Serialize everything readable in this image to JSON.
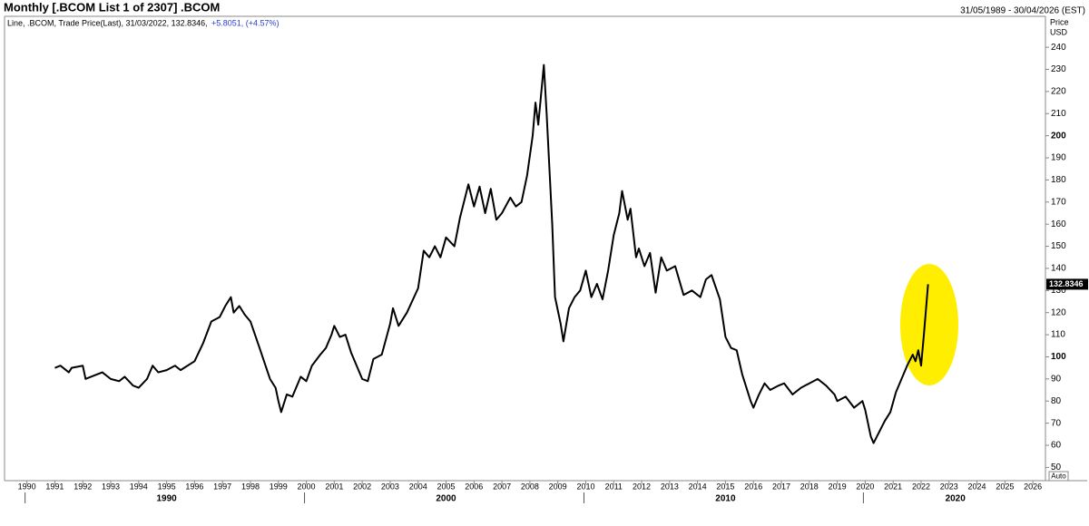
{
  "header": {
    "title": "Monthly [.BCOM List 1 of 2307] .BCOM",
    "range": "31/05/1989 - 30/04/2026 (EST)",
    "legend": "Line, .BCOM, Trade Price(Last), 31/03/2022, 132.8346,",
    "change": "+5.8051, (+4.57%)",
    "auto_button": "Auto"
  },
  "chart_data": {
    "type": "line",
    "y_axis_label": "Price",
    "y_axis_unit": "USD",
    "xlim": [
      1989.2,
      2026.45
    ],
    "ylim": [
      44,
      254
    ],
    "xticks": [
      1990,
      1991,
      1992,
      1993,
      1994,
      1995,
      1996,
      1997,
      1998,
      1999,
      2000,
      2001,
      2002,
      2003,
      2004,
      2005,
      2006,
      2007,
      2008,
      2009,
      2010,
      2011,
      2012,
      2013,
      2014,
      2015,
      2016,
      2017,
      2018,
      2019,
      2020,
      2021,
      2022,
      2023,
      2024,
      2025,
      2026
    ],
    "decade_ticks": [
      1990,
      2000,
      2010,
      2020
    ],
    "yticks": [
      50,
      60,
      70,
      80,
      90,
      100,
      110,
      120,
      130,
      140,
      150,
      160,
      170,
      180,
      190,
      200,
      210,
      220,
      230,
      240
    ],
    "x": [
      1991.0,
      1991.2,
      1991.5,
      1991.6,
      1992.0,
      1992.1,
      1992.5,
      1992.7,
      1993.0,
      1993.3,
      1993.5,
      1993.8,
      1994.0,
      1994.3,
      1994.5,
      1994.7,
      1995.0,
      1995.3,
      1995.5,
      1996.0,
      1996.3,
      1996.6,
      1996.9,
      1997.1,
      1997.3,
      1997.4,
      1997.6,
      1997.8,
      1998.0,
      1998.3,
      1998.7,
      1998.9,
      1999.0,
      1999.1,
      1999.3,
      1999.5,
      1999.8,
      2000.0,
      2000.2,
      2000.5,
      2000.7,
      2000.9,
      2001.0,
      2001.2,
      2001.4,
      2001.6,
      2001.8,
      2002.0,
      2002.2,
      2002.4,
      2002.7,
      2003.0,
      2003.1,
      2003.3,
      2003.6,
      2004.0,
      2004.2,
      2004.4,
      2004.6,
      2004.8,
      2005.0,
      2005.3,
      2005.5,
      2005.8,
      2006.0,
      2006.2,
      2006.4,
      2006.6,
      2006.8,
      2007.0,
      2007.3,
      2007.5,
      2007.7,
      2007.9,
      2008.1,
      2008.2,
      2008.3,
      2008.5,
      2008.6,
      2008.8,
      2008.9,
      2009.1,
      2009.2,
      2009.4,
      2009.6,
      2009.8,
      2010.0,
      2010.2,
      2010.4,
      2010.6,
      2010.8,
      2011.0,
      2011.2,
      2011.3,
      2011.5,
      2011.6,
      2011.8,
      2011.9,
      2012.1,
      2012.3,
      2012.5,
      2012.7,
      2012.9,
      2013.2,
      2013.5,
      2013.8,
      2014.1,
      2014.3,
      2014.5,
      2014.8,
      2015.0,
      2015.2,
      2015.4,
      2015.6,
      2015.9,
      2016.0,
      2016.2,
      2016.4,
      2016.6,
      2016.9,
      2017.1,
      2017.4,
      2017.7,
      2018.0,
      2018.3,
      2018.6,
      2018.9,
      2019.0,
      2019.3,
      2019.6,
      2019.9,
      2020.0,
      2020.2,
      2020.3,
      2020.5,
      2020.7,
      2020.9,
      2021.1,
      2021.3,
      2021.5,
      2021.7,
      2021.8,
      2021.9,
      2022.0,
      2022.1,
      2022.25
    ],
    "series": [
      {
        "name": ".BCOM",
        "color": "#000000",
        "values": [
          95,
          96,
          93,
          95,
          96,
          90,
          92,
          93,
          90,
          89,
          91,
          87,
          86,
          90,
          96,
          93,
          94,
          96,
          94,
          98,
          106,
          116,
          118,
          123,
          127,
          120,
          123,
          119,
          116,
          105,
          90,
          86,
          80,
          75,
          83,
          82,
          91,
          89,
          96,
          101,
          104,
          110,
          114,
          109,
          110,
          102,
          96,
          90,
          89,
          99,
          101,
          115,
          122,
          114,
          120,
          131,
          148,
          145,
          150,
          145,
          154,
          150,
          163,
          178,
          168,
          177,
          165,
          176,
          162,
          165,
          172,
          168,
          170,
          182,
          200,
          215,
          205,
          232,
          210,
          160,
          127,
          115,
          107,
          122,
          127,
          130,
          139,
          127,
          133,
          126,
          139,
          155,
          165,
          175,
          162,
          167,
          145,
          149,
          141,
          147,
          129,
          145,
          139,
          141,
          128,
          130,
          127,
          135,
          137,
          126,
          109,
          104,
          103,
          92,
          80,
          77,
          83,
          88,
          85,
          87,
          88,
          83,
          86,
          88,
          90,
          87,
          83,
          80,
          82,
          77,
          80,
          76,
          64,
          61,
          66,
          71,
          75,
          84,
          90,
          96,
          101,
          98,
          103,
          96,
          110,
          132.8346
        ]
      }
    ]
  }
}
